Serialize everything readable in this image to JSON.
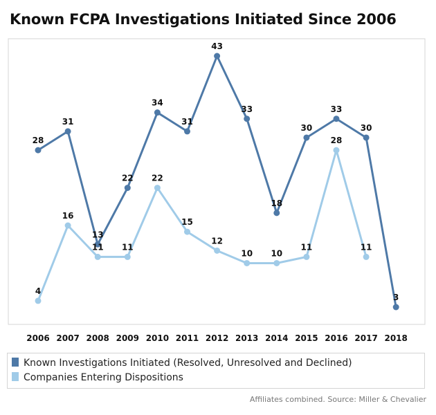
{
  "title": "Known FCPA Investigations Initiated Since 2006",
  "source_note": "Affiliates combined. Source: Miller & Chevalier",
  "chart_data": {
    "type": "line",
    "x": [
      "2006",
      "2007",
      "2008",
      "2009",
      "2010",
      "2011",
      "2012",
      "2013",
      "2014",
      "2015",
      "2016",
      "2017",
      "2018"
    ],
    "ylim": [
      0,
      45
    ],
    "grid": false,
    "legend_position": "bottom",
    "series": [
      {
        "name": "Known Investigations Initiated (Resolved, Unresolved and Declined)",
        "color": "#4e79a7",
        "values": [
          28,
          31,
          13,
          22,
          34,
          31,
          43,
          33,
          18,
          30,
          33,
          30,
          3
        ]
      },
      {
        "name": "Companies Entering Dispositions",
        "color": "#a0cbe8",
        "values": [
          4,
          16,
          11,
          11,
          22,
          15,
          12,
          10,
          10,
          11,
          28,
          11,
          null
        ]
      }
    ]
  }
}
